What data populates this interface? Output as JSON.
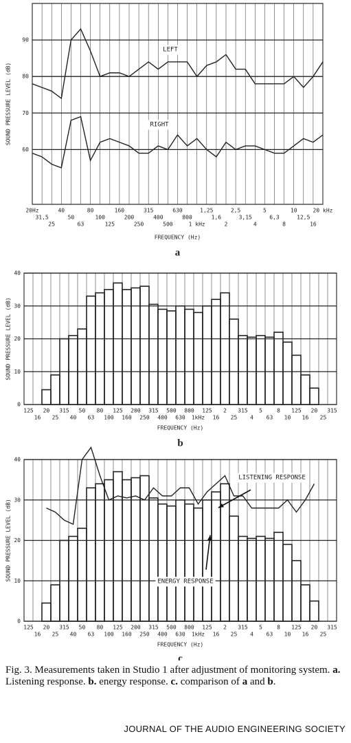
{
  "chart_data": [
    {
      "type": "line",
      "subtitle": "a",
      "xlabel": "FREQUENCY (Hz)",
      "ylabel": "SOUND PRESSURE LEVEL (dB)",
      "categories": [
        "20Hz",
        "31,5",
        "25",
        "40",
        "50",
        "63",
        "80",
        "100",
        "125",
        "160",
        "200",
        "250",
        "315",
        "400",
        "500",
        "630",
        "800",
        "1 kHz",
        "1,25",
        "1,6",
        "2",
        "2,5",
        "3,15",
        "4",
        "5",
        "6,3",
        "8",
        "10",
        "12,5",
        "16",
        "20 kHz"
      ],
      "ylim": [
        45,
        100
      ],
      "yticks": [
        60,
        70,
        80,
        90
      ],
      "grid": true,
      "series": [
        {
          "color": "#222222",
          "values": [
            78,
            77,
            76,
            74,
            90,
            93,
            87,
            80,
            81,
            81,
            80,
            82,
            84,
            82,
            84,
            84,
            84,
            80,
            83,
            84,
            86,
            82,
            82,
            78,
            78,
            78,
            78,
            80,
            77,
            80,
            84
          ]
        },
        {
          "color": "#222222",
          "values": [
            59,
            58,
            56,
            55,
            68,
            69,
            57,
            62,
            63,
            62,
            61,
            59,
            59,
            61,
            60,
            64,
            61,
            63,
            60,
            58,
            62,
            60,
            61,
            61,
            60,
            59,
            59,
            61,
            63,
            62,
            64
          ]
        }
      ],
      "annotations": [
        "LEFT",
        "RIGHT"
      ]
    },
    {
      "type": "bar",
      "subtitle": "b",
      "xlabel": "FREQUENCY (Hz)",
      "ylabel": "SOUND PRESSURE LEVEL (dB)",
      "categories": [
        "125",
        "16",
        "20",
        "25",
        "315",
        "40",
        "50",
        "63",
        "80",
        "100",
        "125",
        "160",
        "200",
        "250",
        "315",
        "400",
        "500",
        "630",
        "800",
        "1kHz",
        "125",
        "16",
        "2",
        "25",
        "315",
        "4",
        "5",
        "63",
        "8",
        "10",
        "125",
        "16",
        "20",
        "25",
        "315"
      ],
      "ylim": [
        0,
        40
      ],
      "yticks": [
        0,
        10,
        20,
        30,
        40
      ],
      "grid": true,
      "series": [
        {
          "type": "bar",
          "color": "#222222",
          "values": [
            null,
            null,
            4.5,
            9,
            20,
            21,
            23,
            33,
            34,
            35,
            37,
            35,
            35.5,
            36,
            30.5,
            29,
            28.5,
            30,
            29,
            28,
            30,
            32,
            34,
            26,
            21,
            20.5,
            21,
            20.5,
            22,
            19,
            15,
            9,
            5,
            null,
            null
          ]
        }
      ],
      "annotations": []
    },
    {
      "type": "combo",
      "subtitle": "c",
      "xlabel": "FREQUENCY (Hz)",
      "ylabel": "SOUND PRESSURE LEVEL (dB)",
      "categories": [
        "125",
        "16",
        "20",
        "25",
        "315",
        "40",
        "50",
        "63",
        "80",
        "100",
        "125",
        "160",
        "200",
        "250",
        "315",
        "400",
        "500",
        "630",
        "800",
        "1kHz",
        "125",
        "16",
        "2",
        "25",
        "315",
        "4",
        "5",
        "63",
        "8",
        "10",
        "125",
        "16",
        "20",
        "25",
        "315"
      ],
      "ylim": [
        0,
        40
      ],
      "yticks": [
        0,
        10,
        20,
        30,
        40
      ],
      "grid": true,
      "series": [
        {
          "type": "bar",
          "color": "#222222",
          "values": [
            null,
            null,
            4.5,
            9,
            20,
            21,
            23,
            33,
            34,
            35,
            37,
            35,
            35.5,
            36,
            30.5,
            29,
            28.5,
            30,
            29,
            28,
            30,
            32,
            34,
            26,
            21,
            20.5,
            21,
            20.5,
            22,
            19,
            15,
            9,
            5,
            null,
            null
          ]
        },
        {
          "type": "line",
          "color": "#222222",
          "values": [
            null,
            null,
            28,
            27,
            25,
            24,
            40,
            43,
            36,
            30,
            31,
            30.5,
            31,
            30,
            33,
            31,
            31,
            33,
            33,
            29,
            32,
            34,
            36,
            31,
            31,
            28,
            28,
            28,
            28,
            30,
            27,
            30,
            34,
            null,
            null
          ]
        }
      ],
      "annotations": [
        "LISTENING RESPONSE",
        "ENERGY RESPONSE"
      ]
    }
  ],
  "caption": {
    "segments": [
      {
        "text": "Fig. 3. Measurements taken in Studio 1 after adjustment of monitoring system. ",
        "bold": false
      },
      {
        "text": "a.",
        "bold": true
      },
      {
        "text": " Listening response. ",
        "bold": false
      },
      {
        "text": "b.",
        "bold": true
      },
      {
        "text": " energy response. ",
        "bold": false
      },
      {
        "text": "c.",
        "bold": true
      },
      {
        "text": " comparison of ",
        "bold": false
      },
      {
        "text": "a",
        "bold": true
      },
      {
        "text": " and ",
        "bold": false
      },
      {
        "text": "b",
        "bold": true
      },
      {
        "text": ".",
        "bold": false
      }
    ]
  },
  "footer": "JOURNAL OF THE AUDIO ENGINEERING SOCIETY"
}
